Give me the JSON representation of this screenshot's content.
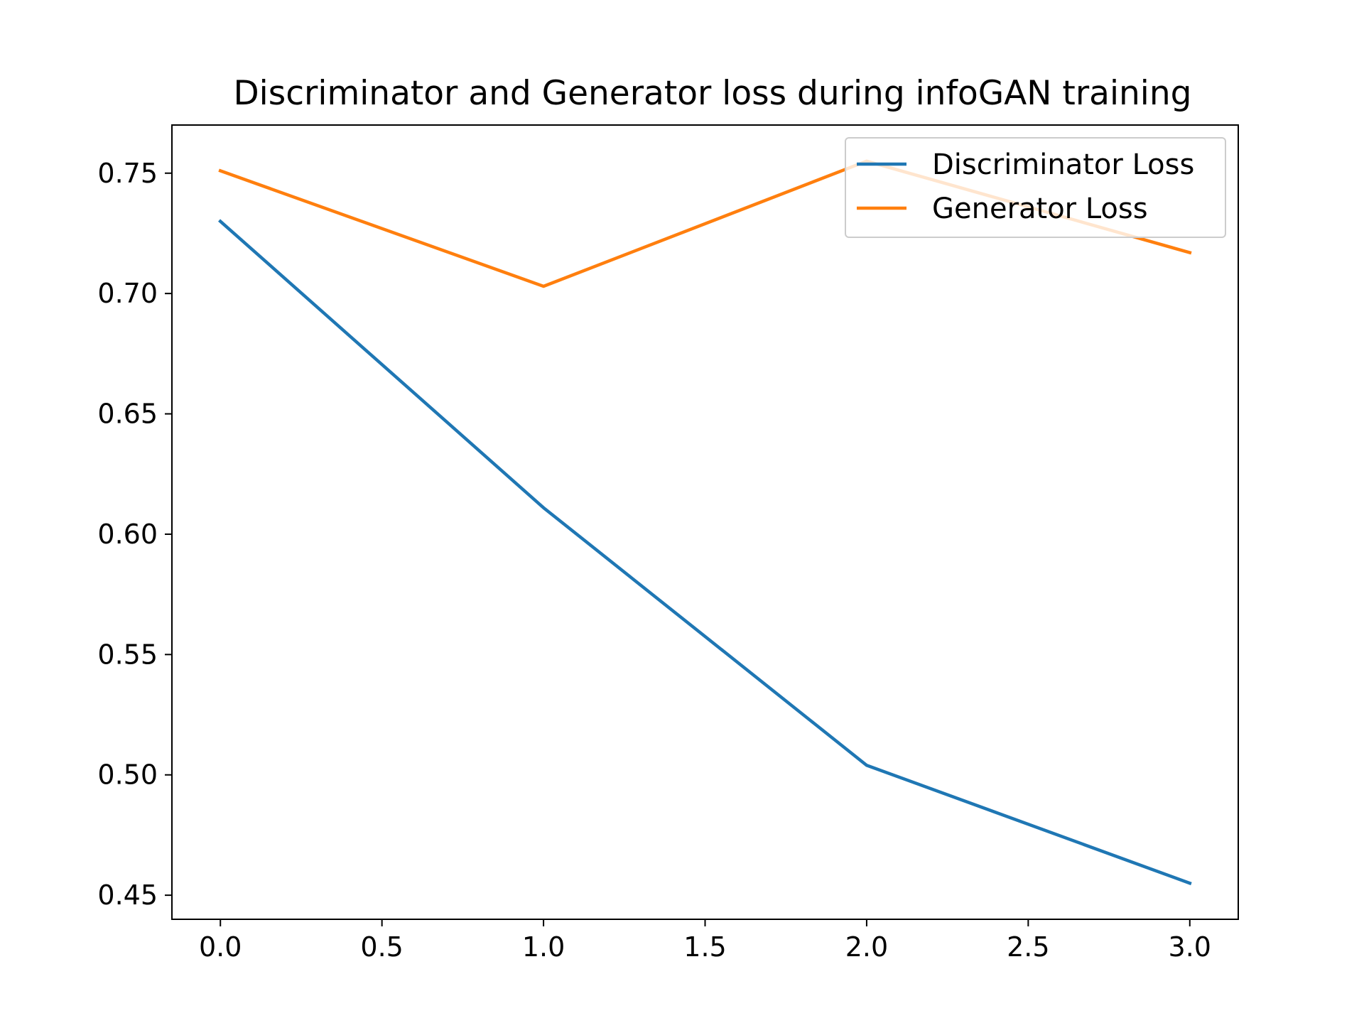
{
  "chart_data": {
    "type": "line",
    "title": "Discriminator and Generator loss during infoGAN training",
    "xlabel": "",
    "ylabel": "",
    "x": [
      0,
      1,
      2,
      3
    ],
    "series": [
      {
        "name": "Discriminator Loss",
        "color": "#1f77b4",
        "values": [
          0.73,
          0.611,
          0.504,
          0.455
        ]
      },
      {
        "name": "Generator Loss",
        "color": "#ff7f0e",
        "values": [
          0.751,
          0.703,
          0.755,
          0.717
        ]
      }
    ],
    "xlim": [
      -0.15,
      3.15
    ],
    "ylim": [
      0.44,
      0.77
    ],
    "xticks": [
      "0.0",
      "0.5",
      "1.0",
      "1.5",
      "2.0",
      "2.5",
      "3.0"
    ],
    "yticks": [
      "0.45",
      "0.50",
      "0.55",
      "0.60",
      "0.65",
      "0.70",
      "0.75"
    ],
    "grid": false,
    "legend_position": "top-right"
  }
}
